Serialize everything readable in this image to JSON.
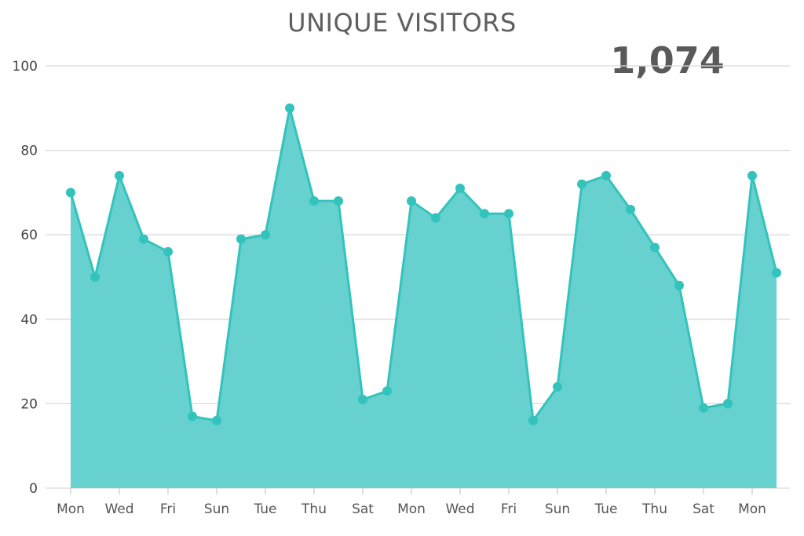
{
  "chart_data": {
    "type": "area",
    "title": "UNIQUE VISITORS",
    "headline_value": "1,074",
    "ylim": [
      0,
      100
    ],
    "yticks": [
      0,
      20,
      40,
      60,
      80,
      100
    ],
    "grid": true,
    "x_tick_labels": [
      "Mon",
      "Wed",
      "Fri",
      "Sun",
      "Tue",
      "Thu",
      "Sat",
      "Mon",
      "Wed",
      "Fri",
      "Sun",
      "Tue",
      "Thu",
      "Sat",
      "Mon"
    ],
    "values": [
      70,
      50,
      74,
      59,
      56,
      17,
      16,
      59,
      60,
      90,
      68,
      68,
      21,
      23,
      68,
      64,
      71,
      65,
      65,
      16,
      24,
      72,
      74,
      66,
      57,
      48,
      19,
      20,
      74,
      51
    ],
    "colors": {
      "line": "#33c3bd",
      "fill": "#66d1cf",
      "point": "#33c3bd"
    }
  }
}
